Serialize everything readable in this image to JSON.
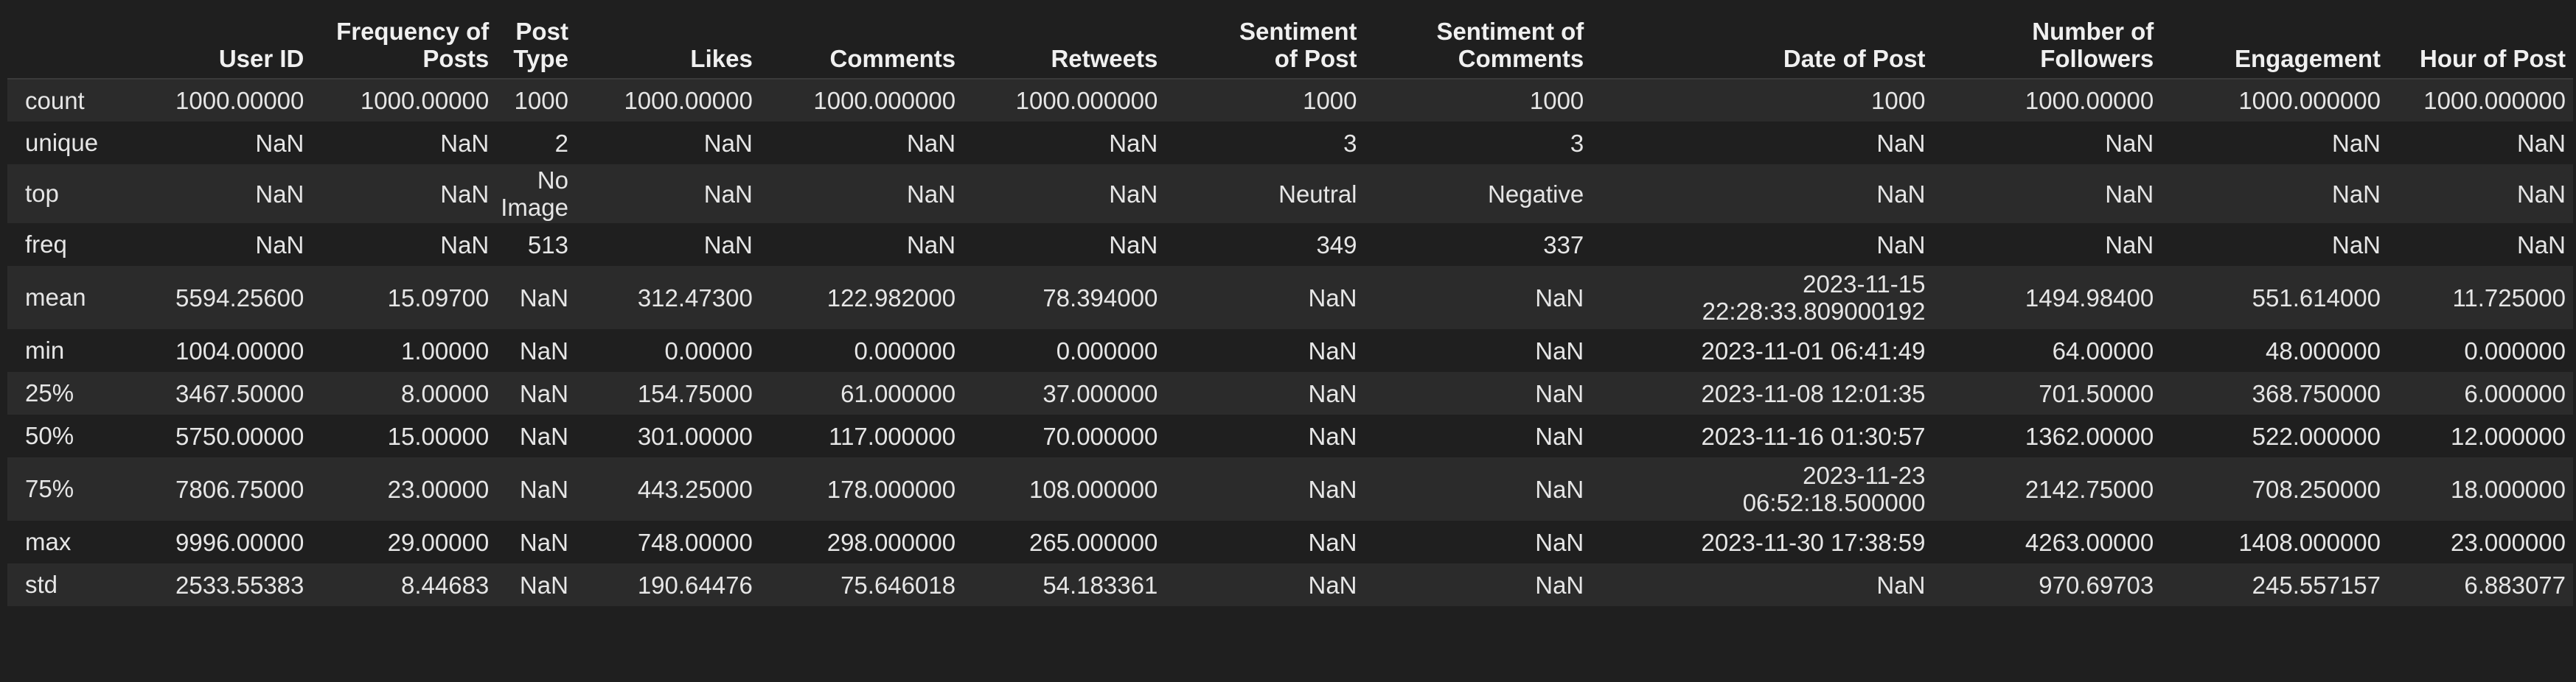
{
  "table": {
    "index_header": "",
    "columns": [
      "User ID",
      "Frequency of\nPosts",
      "Post\nType",
      "Likes",
      "Comments",
      "Retweets",
      "Sentiment\nof Post",
      "Sentiment of\nComments",
      "Date of Post",
      "Number of\nFollowers",
      "Engagement",
      "Hour of Post"
    ],
    "rows": [
      {
        "label": "count",
        "cells": [
          "1000.00000",
          "1000.00000",
          "1000",
          "1000.00000",
          "1000.000000",
          "1000.000000",
          "1000",
          "1000",
          "1000",
          "1000.00000",
          "1000.000000",
          "1000.000000"
        ]
      },
      {
        "label": "unique",
        "cells": [
          "NaN",
          "NaN",
          "2",
          "NaN",
          "NaN",
          "NaN",
          "3",
          "3",
          "NaN",
          "NaN",
          "NaN",
          "NaN"
        ]
      },
      {
        "label": "top",
        "cells": [
          "NaN",
          "NaN",
          "No\nImage",
          "NaN",
          "NaN",
          "NaN",
          "Neutral",
          "Negative",
          "NaN",
          "NaN",
          "NaN",
          "NaN"
        ]
      },
      {
        "label": "freq",
        "cells": [
          "NaN",
          "NaN",
          "513",
          "NaN",
          "NaN",
          "NaN",
          "349",
          "337",
          "NaN",
          "NaN",
          "NaN",
          "NaN"
        ]
      },
      {
        "label": "mean",
        "cells": [
          "5594.25600",
          "15.09700",
          "NaN",
          "312.47300",
          "122.982000",
          "78.394000",
          "NaN",
          "NaN",
          "2023-11-15\n22:28:33.809000192",
          "1494.98400",
          "551.614000",
          "11.725000"
        ]
      },
      {
        "label": "min",
        "cells": [
          "1004.00000",
          "1.00000",
          "NaN",
          "0.00000",
          "0.000000",
          "0.000000",
          "NaN",
          "NaN",
          "2023-11-01 06:41:49",
          "64.00000",
          "48.000000",
          "0.000000"
        ]
      },
      {
        "label": "25%",
        "cells": [
          "3467.50000",
          "8.00000",
          "NaN",
          "154.75000",
          "61.000000",
          "37.000000",
          "NaN",
          "NaN",
          "2023-11-08 12:01:35",
          "701.50000",
          "368.750000",
          "6.000000"
        ]
      },
      {
        "label": "50%",
        "cells": [
          "5750.00000",
          "15.00000",
          "NaN",
          "301.00000",
          "117.000000",
          "70.000000",
          "NaN",
          "NaN",
          "2023-11-16 01:30:57",
          "1362.00000",
          "522.000000",
          "12.000000"
        ]
      },
      {
        "label": "75%",
        "cells": [
          "7806.75000",
          "23.00000",
          "NaN",
          "443.25000",
          "178.000000",
          "108.000000",
          "NaN",
          "NaN",
          "2023-11-23\n06:52:18.500000",
          "2142.75000",
          "708.250000",
          "18.000000"
        ]
      },
      {
        "label": "max",
        "cells": [
          "9996.00000",
          "29.00000",
          "NaN",
          "748.00000",
          "298.000000",
          "265.000000",
          "NaN",
          "NaN",
          "2023-11-30 17:38:59",
          "4263.00000",
          "1408.000000",
          "23.000000"
        ]
      },
      {
        "label": "std",
        "cells": [
          "2533.55383",
          "8.44683",
          "NaN",
          "190.64476",
          "75.646018",
          "54.183361",
          "NaN",
          "NaN",
          "NaN",
          "970.69703",
          "245.557157",
          "6.883077"
        ]
      }
    ]
  }
}
